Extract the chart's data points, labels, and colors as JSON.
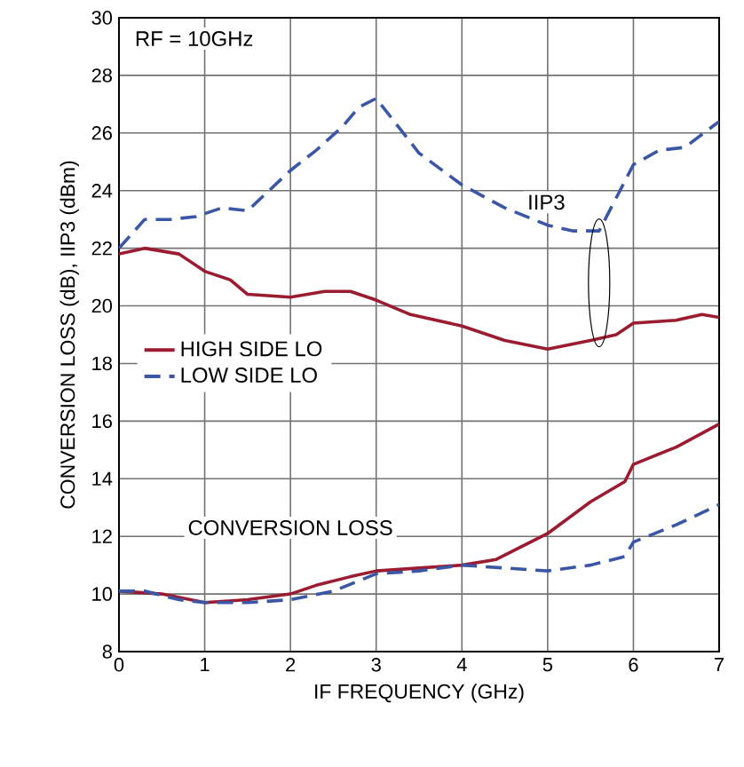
{
  "chart_data": {
    "type": "line",
    "xlabel": "IF FREQUENCY (GHz)",
    "ylabel": "CONVERSION LOSS (dB), IIP3 (dBm)",
    "xlim": [
      0,
      7
    ],
    "ylim": [
      8,
      30
    ],
    "xticks": [
      0,
      1,
      2,
      3,
      4,
      5,
      6,
      7
    ],
    "yticks": [
      8,
      10,
      12,
      14,
      16,
      18,
      20,
      22,
      24,
      26,
      28,
      30
    ],
    "grid": true,
    "legend": "left",
    "annotations": [
      "RF = 10GHz",
      {
        "text": "IIP3",
        "x": 5.6,
        "y": 22.6
      },
      {
        "text": "CONVERSION LOSS",
        "x": 3.0,
        "y": 10.8
      }
    ],
    "series": [
      {
        "name": "HIGH SIDE LO",
        "color": "#9b1b30",
        "line_style": "solid",
        "x": [
          0,
          0.3,
          0.7,
          1.0,
          1.3,
          1.5,
          2.0,
          2.4,
          2.7,
          3.0,
          3.4,
          4.0,
          4.5,
          5.0,
          5.5,
          5.8,
          6.0,
          6.5,
          6.8,
          7.0
        ],
        "values": [
          21.8,
          22.0,
          21.8,
          21.2,
          20.9,
          20.4,
          20.3,
          20.5,
          20.5,
          20.2,
          19.7,
          19.3,
          18.8,
          18.5,
          18.8,
          19.0,
          19.4,
          19.5,
          19.7,
          19.6
        ]
      },
      {
        "name": "LOW SIDE LO",
        "color": "#3a56a5",
        "line_style": "dashed",
        "x": [
          0,
          0.3,
          0.6,
          0.9,
          1.2,
          1.5,
          2.0,
          2.3,
          2.6,
          2.8,
          3.0,
          3.5,
          4.0,
          4.5,
          5.0,
          5.3,
          5.6,
          6.0,
          6.3,
          6.6,
          7.0
        ],
        "values": [
          22.0,
          23.0,
          23.0,
          23.1,
          23.4,
          23.3,
          24.7,
          25.4,
          26.2,
          26.9,
          27.2,
          25.3,
          24.2,
          23.4,
          22.8,
          22.6,
          22.6,
          24.9,
          25.4,
          25.5,
          26.4
        ]
      },
      {
        "color": "#9b1b30",
        "line_style": "solid",
        "x": [
          0,
          0.5,
          1.0,
          1.5,
          2.0,
          2.3,
          2.7,
          3.0,
          3.5,
          4.0,
          4.4,
          4.8,
          5.0,
          5.5,
          5.9,
          6.0,
          6.5,
          7.0
        ],
        "values": [
          10.1,
          10.0,
          9.7,
          9.8,
          10.0,
          10.3,
          10.6,
          10.8,
          10.9,
          11.0,
          11.2,
          11.8,
          12.1,
          13.2,
          13.9,
          14.5,
          15.1,
          15.9
        ]
      },
      {
        "color": "#3a56a5",
        "line_style": "dashed",
        "x": [
          0,
          0.3,
          0.7,
          1.0,
          1.5,
          2.0,
          2.5,
          3.0,
          3.5,
          4.0,
          4.5,
          5.0,
          5.5,
          5.9,
          6.0,
          6.5,
          7.0
        ],
        "values": [
          10.1,
          10.1,
          9.8,
          9.7,
          9.7,
          9.8,
          10.1,
          10.7,
          10.8,
          11.0,
          10.9,
          10.8,
          11.0,
          11.3,
          11.8,
          12.4,
          13.1
        ]
      }
    ]
  }
}
